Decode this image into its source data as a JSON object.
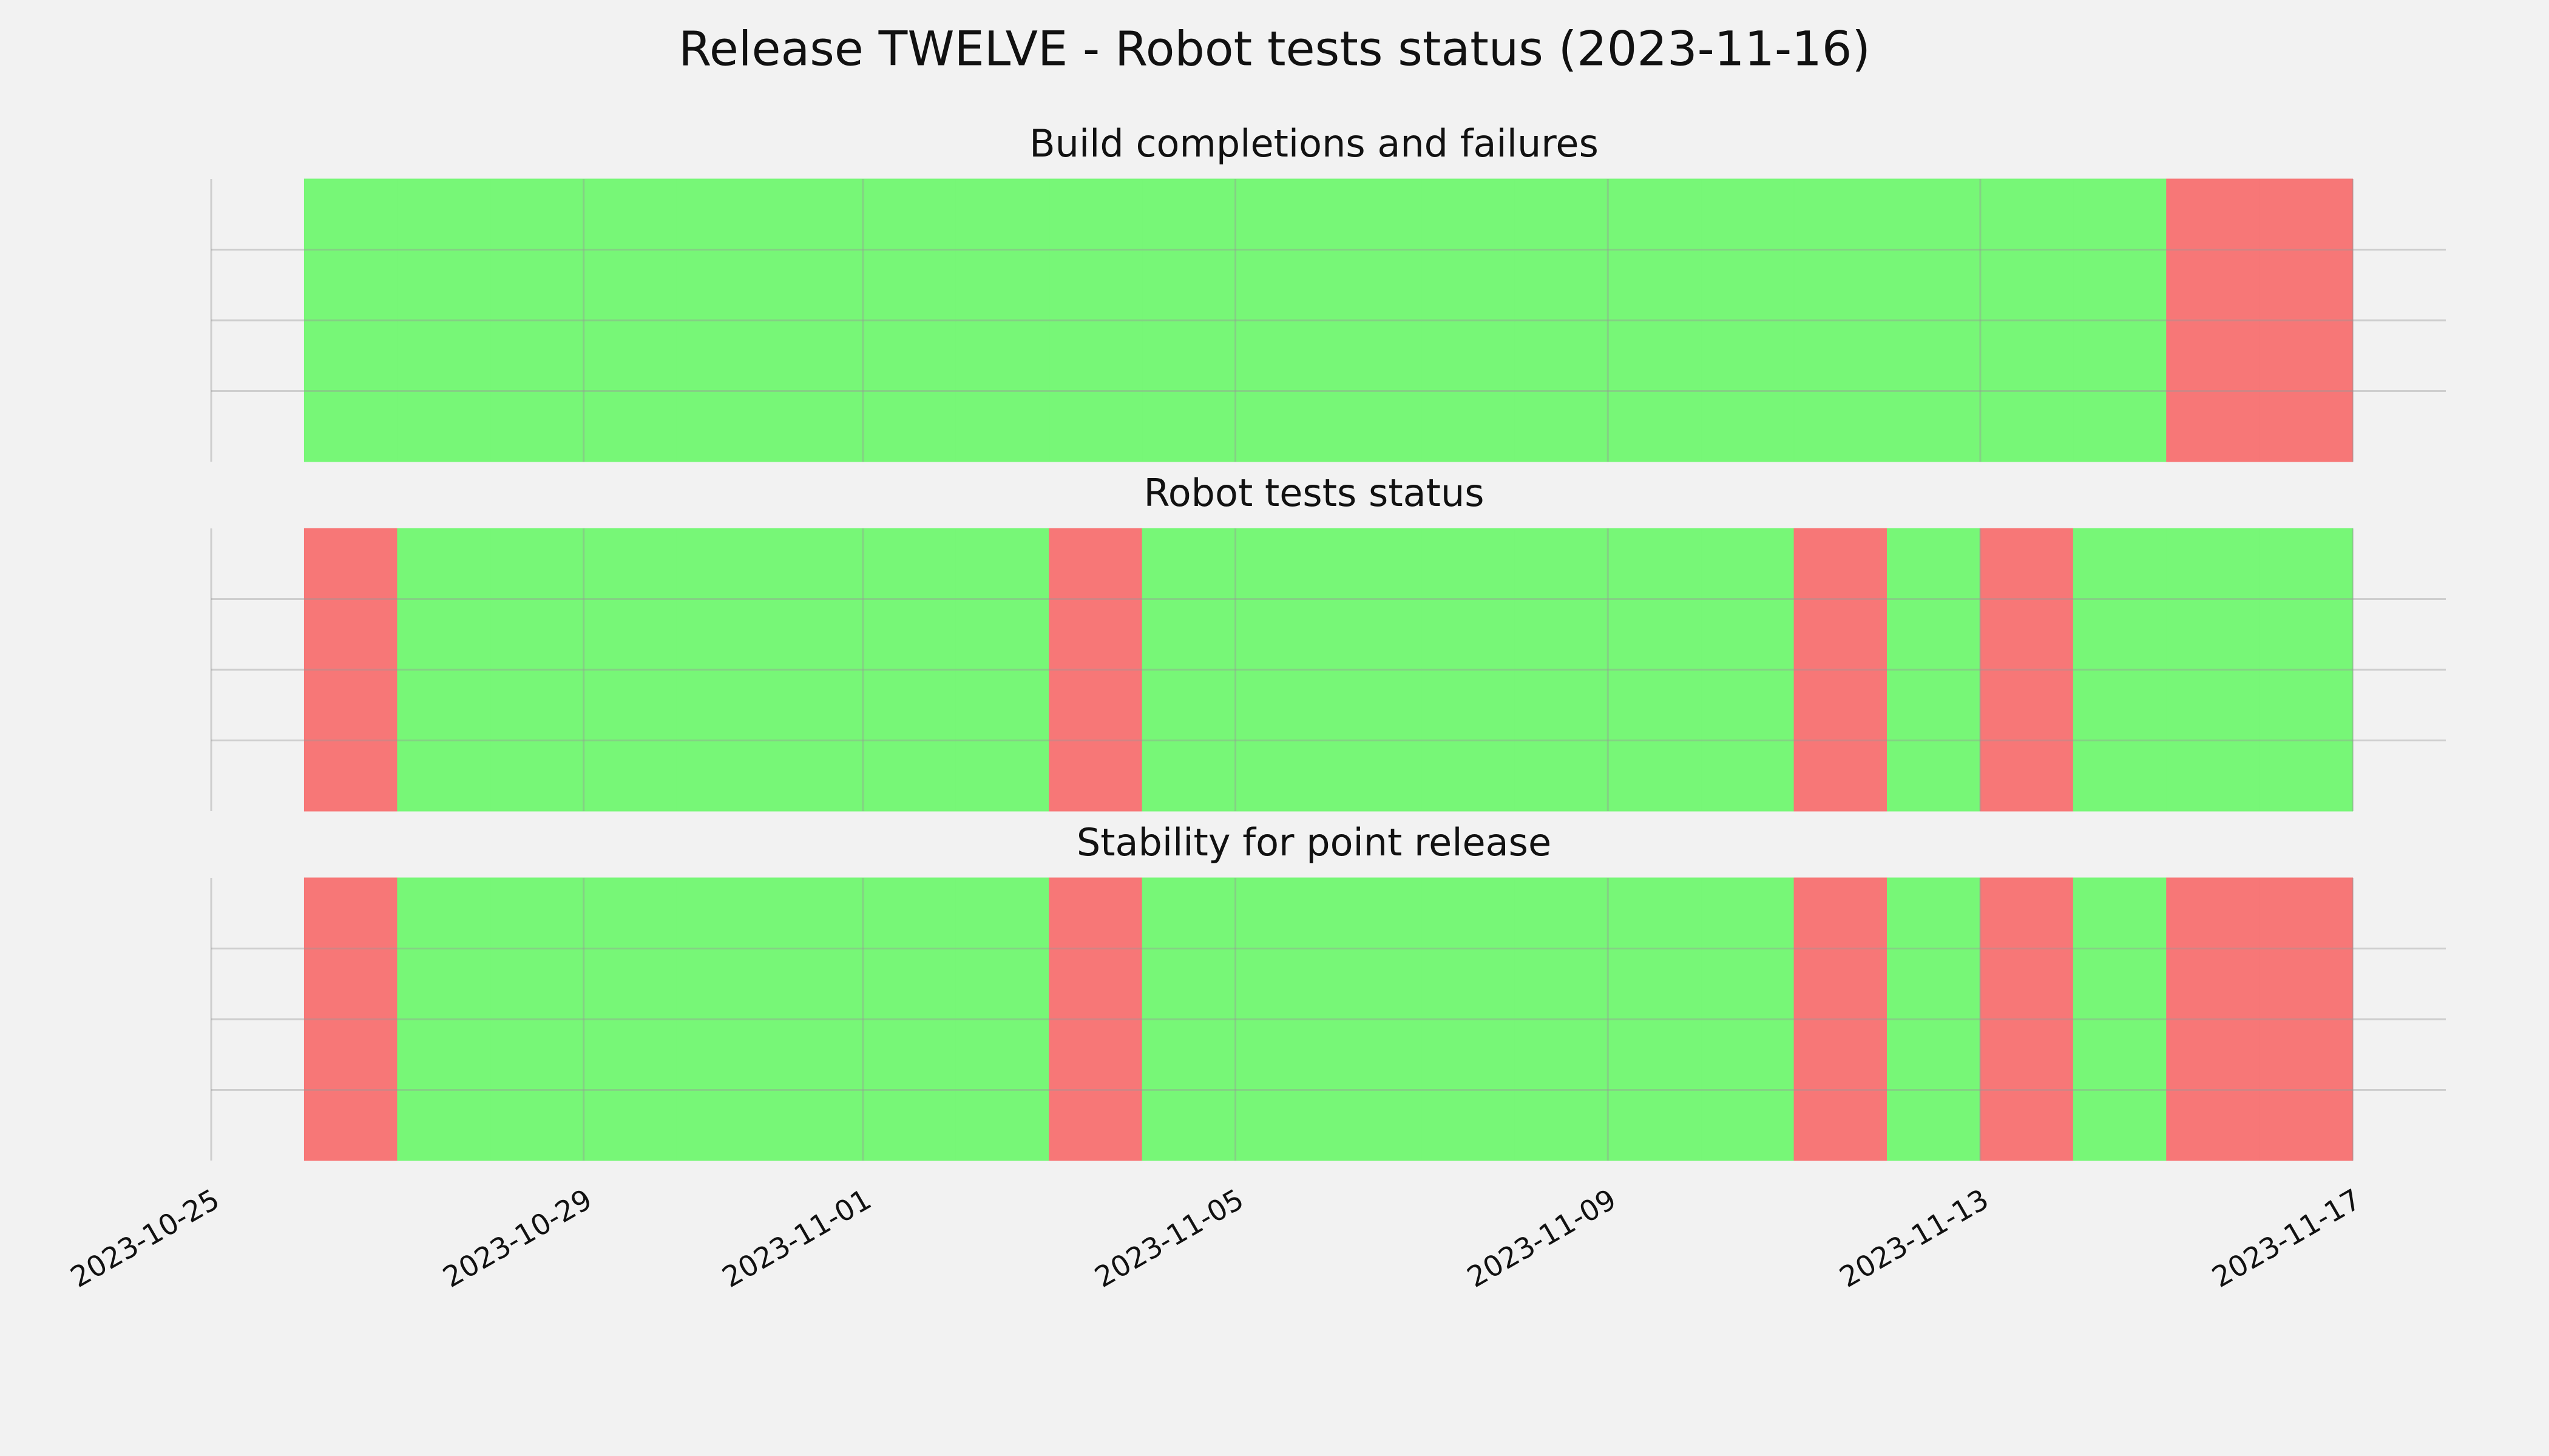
{
  "title": "Release TWELVE - Robot tests status (2023-11-16)",
  "chart_data": [
    {
      "type": "timeline",
      "title": "Build completions and failures",
      "x": [
        "2023-10-26",
        "2023-10-27",
        "2023-10-28",
        "2023-10-29",
        "2023-10-30",
        "2023-10-31",
        "2023-11-01",
        "2023-11-02",
        "2023-11-03",
        "2023-11-04",
        "2023-11-05",
        "2023-11-06",
        "2023-11-07",
        "2023-11-08",
        "2023-11-09",
        "2023-11-10",
        "2023-11-11",
        "2023-11-12",
        "2023-11-13",
        "2023-11-14",
        "2023-11-15",
        "2023-11-16"
      ],
      "values": [
        1,
        1,
        1,
        1,
        1,
        1,
        1,
        1,
        1,
        1,
        1,
        1,
        1,
        1,
        1,
        1,
        1,
        1,
        1,
        1,
        0,
        0
      ],
      "colors": [
        "#f77777",
        "#77f777"
      ],
      "xlim": [
        "2023-10-25",
        "2023-11-18"
      ],
      "ylim": [
        0,
        1
      ],
      "yticks": [
        0.25,
        0.5,
        0.75
      ],
      "grid": true
    },
    {
      "type": "timeline",
      "title": "Robot tests status",
      "x": [
        "2023-10-26",
        "2023-10-27",
        "2023-10-28",
        "2023-10-29",
        "2023-10-30",
        "2023-10-31",
        "2023-11-01",
        "2023-11-02",
        "2023-11-03",
        "2023-11-04",
        "2023-11-05",
        "2023-11-06",
        "2023-11-07",
        "2023-11-08",
        "2023-11-09",
        "2023-11-10",
        "2023-11-11",
        "2023-11-12",
        "2023-11-13",
        "2023-11-14",
        "2023-11-15",
        "2023-11-16"
      ],
      "values": [
        0,
        1,
        1,
        1,
        1,
        1,
        1,
        1,
        0,
        1,
        1,
        1,
        1,
        1,
        1,
        1,
        0,
        1,
        0,
        1,
        1,
        1
      ],
      "colors": [
        "#f77777",
        "#77f777"
      ],
      "xlim": [
        "2023-10-25",
        "2023-11-18"
      ],
      "ylim": [
        0,
        1
      ],
      "yticks": [
        0.25,
        0.5,
        0.75
      ],
      "grid": true
    },
    {
      "type": "timeline",
      "title": "Stability for point release",
      "x": [
        "2023-10-26",
        "2023-10-27",
        "2023-10-28",
        "2023-10-29",
        "2023-10-30",
        "2023-10-31",
        "2023-11-01",
        "2023-11-02",
        "2023-11-03",
        "2023-11-04",
        "2023-11-05",
        "2023-11-06",
        "2023-11-07",
        "2023-11-08",
        "2023-11-09",
        "2023-11-10",
        "2023-11-11",
        "2023-11-12",
        "2023-11-13",
        "2023-11-14",
        "2023-11-15",
        "2023-11-16"
      ],
      "values": [
        0,
        1,
        1,
        1,
        1,
        1,
        1,
        1,
        0,
        1,
        1,
        1,
        1,
        1,
        1,
        1,
        0,
        1,
        0,
        1,
        0,
        0
      ],
      "colors": [
        "#f77777",
        "#77f777"
      ],
      "xlim": [
        "2023-10-25",
        "2023-11-18"
      ],
      "ylim": [
        0,
        1
      ],
      "yticks": [
        0.25,
        0.5,
        0.75
      ],
      "grid": true,
      "xticks": [
        "2023-10-25",
        "2023-10-29",
        "2023-11-01",
        "2023-11-05",
        "2023-11-09",
        "2023-11-13",
        "2023-11-17"
      ]
    }
  ]
}
